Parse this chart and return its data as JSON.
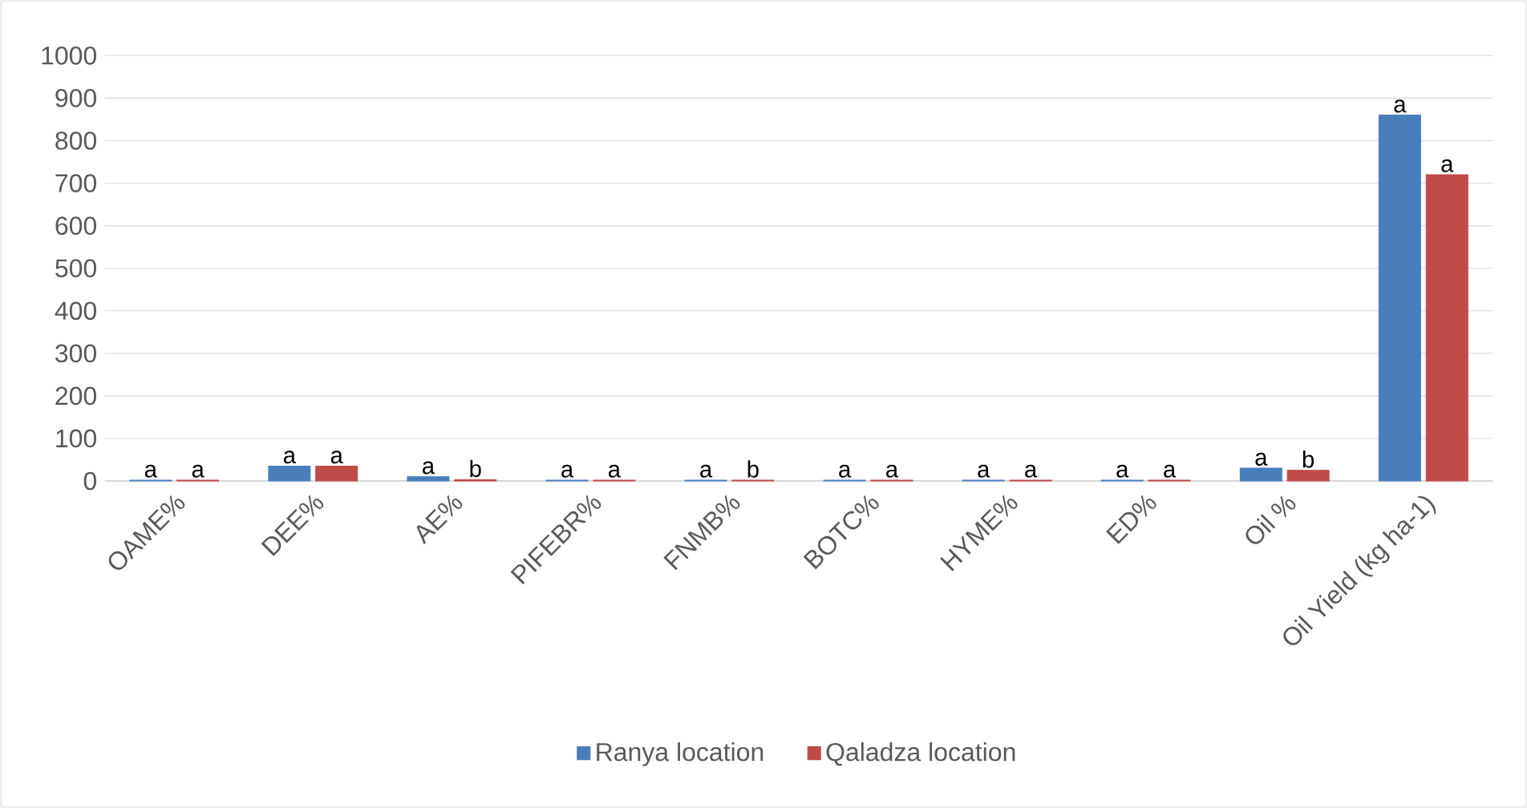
{
  "chart_data": {
    "type": "bar",
    "categories": [
      "OAME%",
      "DEE%",
      "AE%",
      "PIFEBR%",
      "FNMB%",
      "BOTC%",
      "HYME%",
      "ED%",
      "Oil %",
      "Oil Yield (kg ha-1)"
    ],
    "series": [
      {
        "name": "Ranya location",
        "color": "#4a7ebb",
        "values": [
          2,
          35,
          10,
          2,
          2,
          2,
          2,
          2,
          30,
          860
        ],
        "value_labels": [
          "a",
          "a",
          "a",
          "a",
          "a",
          "a",
          "a",
          "a",
          "a",
          "a"
        ]
      },
      {
        "name": "Qaladza location",
        "color": "#be4b48",
        "values": [
          2,
          35,
          3,
          2,
          2,
          2,
          2,
          2,
          25,
          720
        ],
        "value_labels": [
          "a",
          "a",
          "b",
          "a",
          "b",
          "a",
          "a",
          "a",
          "b",
          "a"
        ]
      }
    ],
    "ylim": [
      0,
      1000
    ],
    "yticks": [
      0,
      100,
      200,
      300,
      400,
      500,
      600,
      700,
      800,
      900,
      1000
    ],
    "grid": "y",
    "legend": "bottom"
  }
}
